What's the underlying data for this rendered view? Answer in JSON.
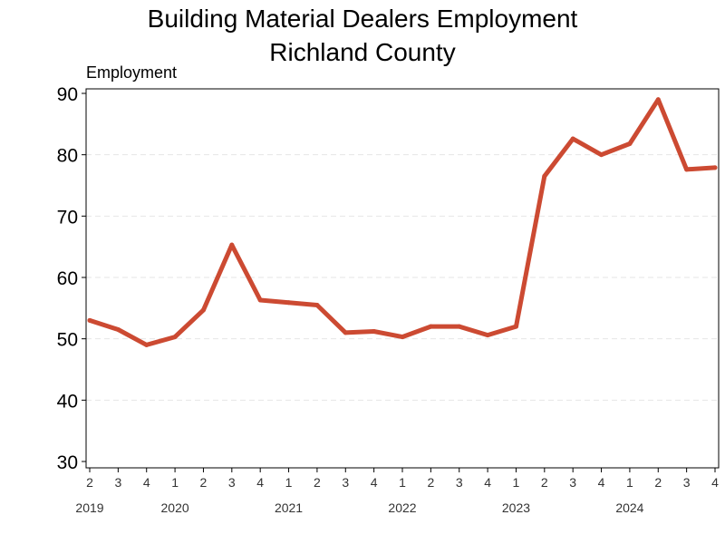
{
  "chart_data": {
    "type": "line",
    "title": [
      "Building Material Dealers Employment",
      "Richland County"
    ],
    "ylabel": "Employment",
    "xlabel": "",
    "ylim": [
      30,
      90
    ],
    "yticks": [
      30,
      40,
      50,
      60,
      70,
      80,
      90
    ],
    "grid": true,
    "legend": "none",
    "color": "#cc4a32",
    "x": [
      "2019 Q2",
      "2019 Q3",
      "2019 Q4",
      "2020 Q1",
      "2020 Q2",
      "2020 Q3",
      "2020 Q4",
      "2021 Q1",
      "2021 Q2",
      "2021 Q3",
      "2021 Q4",
      "2022 Q1",
      "2022 Q2",
      "2022 Q3",
      "2022 Q4",
      "2023 Q1",
      "2023 Q2",
      "2023 Q3",
      "2023 Q4",
      "2024 Q1",
      "2024 Q2",
      "2024 Q3",
      "2024 Q4"
    ],
    "quarter_labels": [
      "2",
      "3",
      "4",
      "1",
      "2",
      "3",
      "4",
      "1",
      "2",
      "3",
      "4",
      "1",
      "2",
      "3",
      "4",
      "1",
      "2",
      "3",
      "4",
      "1",
      "2",
      "3",
      "4"
    ],
    "years": [
      {
        "label": "2019",
        "index": 0
      },
      {
        "label": "2020",
        "index": 3
      },
      {
        "label": "2021",
        "index": 7
      },
      {
        "label": "2022",
        "index": 11
      },
      {
        "label": "2023",
        "index": 15
      },
      {
        "label": "2024",
        "index": 19
      }
    ],
    "series": [
      {
        "values": [
          53,
          51.5,
          49,
          50.3,
          54.7,
          65.3,
          56.3,
          55.9,
          55.5,
          51,
          51.2,
          50.3,
          52,
          52,
          50.6,
          52,
          76.5,
          82.6,
          80,
          81.8,
          89,
          77.6,
          77.9
        ]
      }
    ]
  }
}
